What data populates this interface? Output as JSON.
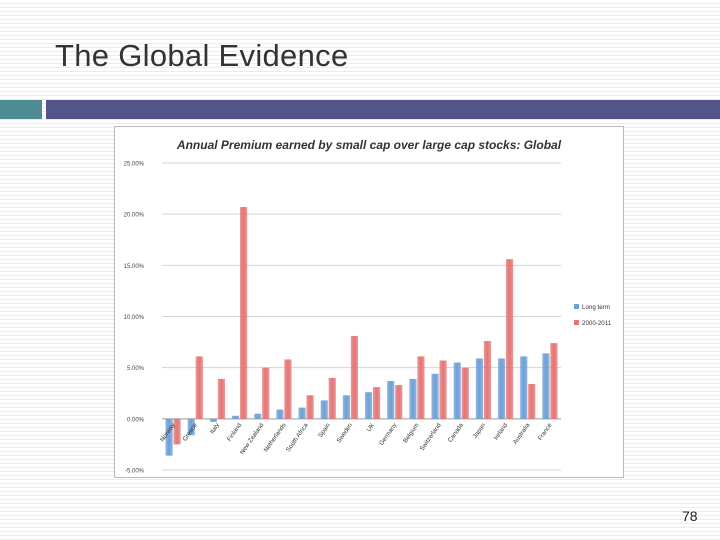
{
  "slide": {
    "title": "The Global Evidence",
    "page_number": "78"
  },
  "colors": {
    "band_left": "#4f8b93",
    "band_right": "#54538a",
    "long_term": "#6d9fd6",
    "recent": "#e57575"
  },
  "chart_data": {
    "type": "bar",
    "title": "Annual Premium earned by small cap over large cap stocks: Global",
    "xlabel": "",
    "ylabel": "",
    "ylim": [
      -5,
      25
    ],
    "yticks": [
      -5,
      0,
      5,
      10,
      15,
      20,
      25
    ],
    "ytick_labels": [
      "-5.00%",
      "0.00%",
      "5.00%",
      "10.00%",
      "15.00%",
      "20.00%",
      "25.00%"
    ],
    "grid": true,
    "legend": "right",
    "categories": [
      "Norway",
      "Greece",
      "Italy",
      "Finland",
      "New Zealand",
      "Netherlands",
      "South Africa",
      "Spain",
      "Sweden",
      "UK",
      "Germany",
      "Belgium",
      "Switzerland",
      "Canada",
      "Japan",
      "Ireland",
      "Australia",
      "France"
    ],
    "series": [
      {
        "name": "Long term",
        "values": [
          -3.6,
          -1.6,
          -0.3,
          0.3,
          0.5,
          0.9,
          1.1,
          1.8,
          2.3,
          2.6,
          3.7,
          3.9,
          4.4,
          5.5,
          5.9,
          5.9,
          6.1,
          6.4
        ]
      },
      {
        "name": "2000-2011",
        "values": [
          -2.5,
          6.1,
          3.9,
          20.7,
          5.0,
          5.8,
          2.3,
          4.0,
          8.1,
          3.1,
          3.3,
          6.1,
          5.7,
          5.0,
          7.6,
          15.6,
          3.4,
          7.4
        ]
      }
    ]
  }
}
